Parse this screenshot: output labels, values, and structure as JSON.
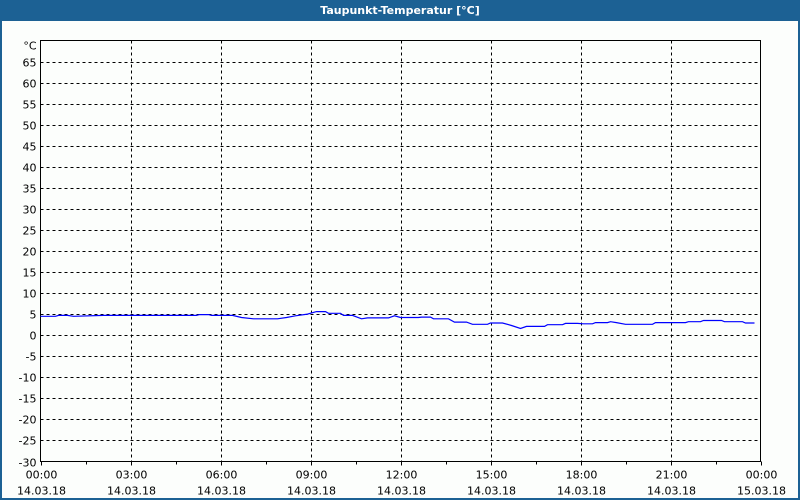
{
  "window": {
    "title": "Taupunkt-Temperatur [°C]"
  },
  "chart_data": {
    "type": "line",
    "title": "Taupunkt-Temperatur [°C]",
    "ylabel": "°C",
    "xlabel": "",
    "ylim": [
      -30,
      70
    ],
    "yticks": [
      65,
      60,
      55,
      50,
      45,
      40,
      35,
      30,
      25,
      20,
      15,
      10,
      5,
      0,
      -5,
      -10,
      -15,
      -20,
      -25,
      -30
    ],
    "xlim_hours": [
      0,
      24
    ],
    "xticks": [
      {
        "time": "00:00",
        "date": "14.03.18"
      },
      {
        "time": "03:00",
        "date": "14.03.18"
      },
      {
        "time": "06:00",
        "date": "14.03.18"
      },
      {
        "time": "09:00",
        "date": "14.03.18"
      },
      {
        "time": "12:00",
        "date": "14.03.18"
      },
      {
        "time": "15:00",
        "date": "14.03.18"
      },
      {
        "time": "18:00",
        "date": "14.03.18"
      },
      {
        "time": "21:00",
        "date": "14.03.18"
      },
      {
        "time": "00:00",
        "date": "15.03.18"
      }
    ],
    "grid": true,
    "line_color": "#0000ff",
    "series": [
      {
        "x": [
          0,
          0.5,
          0.6,
          0.9,
          1.1,
          2.1,
          5.2,
          5.3,
          5.6,
          5.7,
          6.4,
          6.7,
          7.1,
          7.9,
          8.2,
          8.5,
          8.9,
          9.2,
          9.5,
          9.6,
          10,
          10.1,
          10.4,
          10.7,
          10.9,
          11.6,
          11.8,
          12,
          12.6,
          12.7,
          13,
          13.1,
          13.6,
          13.8,
          14.2,
          14.4,
          14.9,
          15,
          15.4,
          15.7,
          16,
          16.2,
          16.8,
          16.9,
          17.4,
          17.5,
          17.9,
          18.1,
          18.4,
          18.5,
          18.9,
          19,
          19.2,
          19.5,
          20.4,
          20.5,
          21.5,
          21.6,
          22,
          22.1,
          22.7,
          22.8,
          23.4,
          23.5,
          23.8
        ],
        "y": [
          4.5,
          4.5,
          4.7,
          4.7,
          4.5,
          4.7,
          4.7,
          4.9,
          4.9,
          4.7,
          4.7,
          4.2,
          3.9,
          3.9,
          4.2,
          4.6,
          5.0,
          5.6,
          5.6,
          5.2,
          5.2,
          4.7,
          4.7,
          3.9,
          4.1,
          4.1,
          4.6,
          4.2,
          4.2,
          4.3,
          4.3,
          3.9,
          3.9,
          3.1,
          3.1,
          2.6,
          2.6,
          2.9,
          2.9,
          2.3,
          1.6,
          2.1,
          2.1,
          2.5,
          2.5,
          2.8,
          2.8,
          2.7,
          2.7,
          3.0,
          3.0,
          3.2,
          3.0,
          2.6,
          2.6,
          3.0,
          3.0,
          3.2,
          3.2,
          3.5,
          3.5,
          3.2,
          3.2,
          2.9,
          2.9
        ]
      }
    ]
  }
}
